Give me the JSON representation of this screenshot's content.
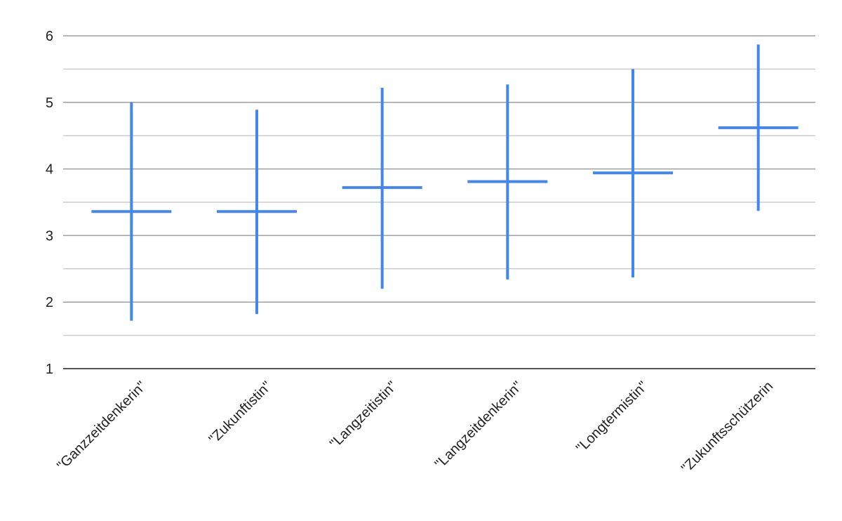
{
  "chart_data": {
    "type": "error-bar",
    "title": "",
    "xlabel": "",
    "ylabel": "",
    "ylim": [
      1,
      6
    ],
    "yticks": [
      "1",
      "2",
      "3",
      "4",
      "5",
      "6"
    ],
    "minor_gridlines": true,
    "grid": true,
    "legend": "none",
    "categories": [
      "\"Ganzzeitdenkerin\"",
      "\"Zukunftistin\"",
      "\"Langzeitistin\"",
      "\"Langzeitdenkerin\"",
      "\"Longtermistin\"",
      "\"Zukunftsschützerin"
    ],
    "series": [
      {
        "mean": [
          3.36,
          3.36,
          3.72,
          3.81,
          3.94,
          4.62
        ],
        "low": [
          1.72,
          1.82,
          2.2,
          2.34,
          2.37,
          3.37
        ],
        "high": [
          5.0,
          4.89,
          5.22,
          5.27,
          5.5,
          5.87
        ]
      }
    ],
    "colors": {
      "series": "#4285f4",
      "grid_major": "#9e9e9e",
      "grid_minor": "#cccccc",
      "baseline": "#555555"
    }
  }
}
